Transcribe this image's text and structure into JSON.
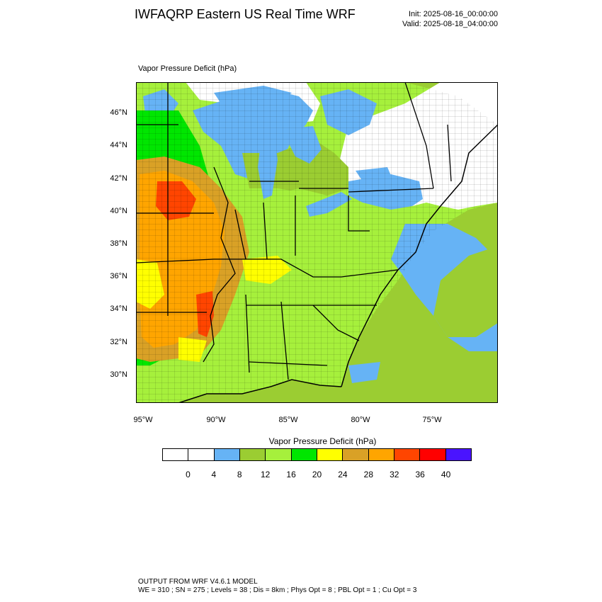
{
  "title": "IWFAQRP Eastern US Real Time WRF",
  "init": "Init: 2025-08-16_00:00:00",
  "valid": "Valid: 2025-08-18_04:00:00",
  "field_label": "Vapor Pressure Deficit   (hPa)",
  "legend": {
    "title": "Vapor Pressure Deficit  (hPa)",
    "colors": [
      "#ffffff",
      "#ffffff",
      "#66b3f5",
      "#9bcd32",
      "#a6f03c",
      "#00e600",
      "#ffff00",
      "#d9a126",
      "#ffa500",
      "#ff4500",
      "#ff0000",
      "#4a14ff"
    ],
    "ticks": [
      "0",
      "4",
      "8",
      "12",
      "16",
      "20",
      "24",
      "28",
      "32",
      "36",
      "40"
    ]
  },
  "axes": {
    "lat_labels": [
      "46°N",
      "44°N",
      "42°N",
      "40°N",
      "38°N",
      "36°N",
      "34°N",
      "32°N",
      "30°N"
    ],
    "lon_labels": [
      "95°W",
      "90°W",
      "85°W",
      "80°W",
      "75°W"
    ]
  },
  "map_colors": {
    "ocean": "#9bcd32",
    "water": "#66b3f5",
    "land_high": "#ff4500",
    "land_orange": "#ffa500",
    "land_brown": "#d9a126",
    "land_yellow": "#ffff00",
    "land_green": "#00e600",
    "land_lime": "#a6f03c",
    "land_olive": "#9bcd32",
    "blank": "#ffffff"
  },
  "footer": {
    "line1": "OUTPUT FROM WRF V4.6.1 MODEL",
    "line2": "WE = 310 ; SN = 275 ; Levels = 38 ; Dis = 8km ; Phys Opt = 8 ; PBL Opt = 1 ; Cu Opt = 3"
  }
}
